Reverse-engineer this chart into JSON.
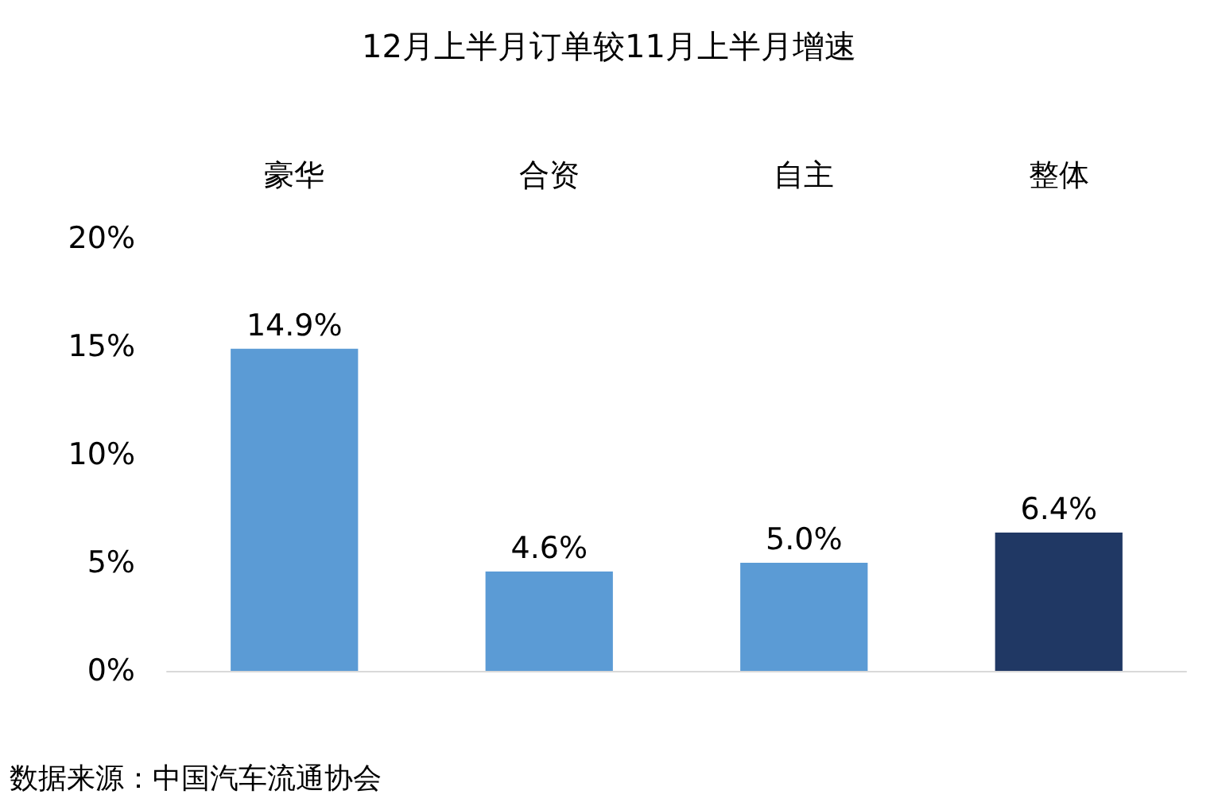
{
  "chart_data": {
    "type": "bar",
    "title": "12月上半月订单较11月上半月增速",
    "categories": [
      "豪华",
      "合资",
      "自主",
      "整体"
    ],
    "values": [
      14.9,
      4.6,
      5.0,
      6.4
    ],
    "value_labels": [
      "14.9%",
      "4.6%",
      "5.0%",
      "6.4%"
    ],
    "colors": [
      "#5b9bd5",
      "#5b9bd5",
      "#5b9bd5",
      "#203864"
    ],
    "ylim": [
      0,
      20
    ],
    "yticks": [
      {
        "value": 0,
        "label": "0%"
      },
      {
        "value": 5,
        "label": "5%"
      },
      {
        "value": 10,
        "label": "10%"
      },
      {
        "value": 15,
        "label": "15%"
      },
      {
        "value": 20,
        "label": "20%"
      }
    ],
    "grid": false,
    "annotations": [
      "数据来源：中国汽车流通协会"
    ]
  }
}
